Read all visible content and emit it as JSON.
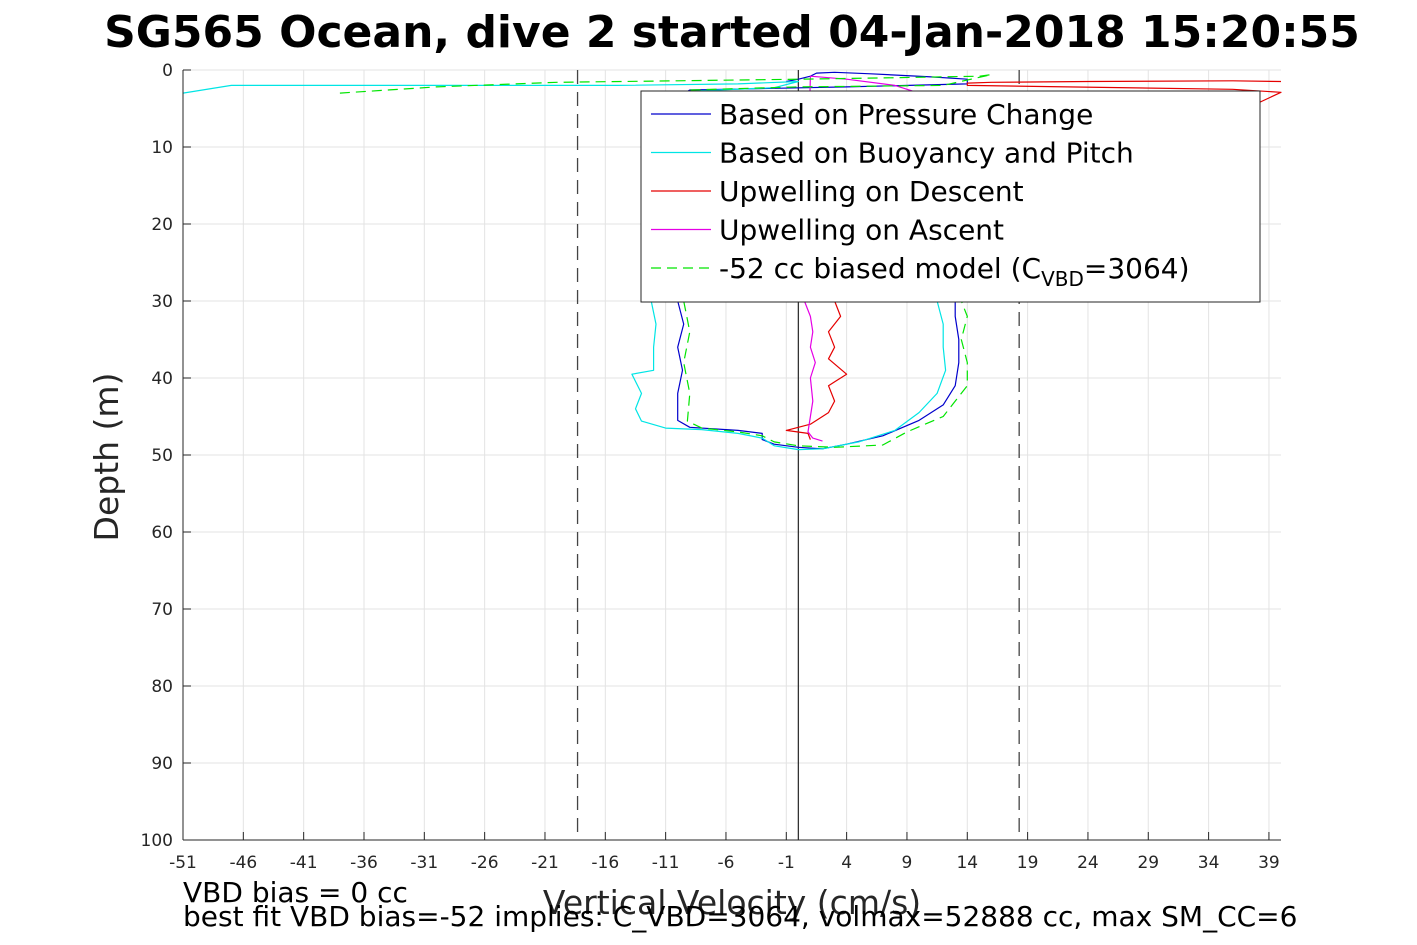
{
  "chart_data": {
    "type": "line",
    "title": "SG565 Ocean, dive 2 started 04-Jan-2018 15:20:55",
    "xlabel": "Vertical Velocity (cm/s)",
    "ylabel": "Depth (m)",
    "xlim": [
      -51,
      40
    ],
    "ylim": [
      0,
      100
    ],
    "y_reversed": true,
    "grid": true,
    "xticks": [
      -51,
      -46,
      -41,
      -36,
      -31,
      -26,
      -21,
      -16,
      -11,
      -6,
      -1,
      4,
      9,
      14,
      19,
      24,
      29,
      34,
      39
    ],
    "yticks": [
      0,
      10,
      20,
      30,
      40,
      50,
      60,
      70,
      80,
      90,
      100
    ],
    "legend_placement": "top-right",
    "reference_lines": {
      "zero_x": 0,
      "dashed_x": [
        -18.3,
        18.3
      ]
    },
    "series": [
      {
        "name": "Based on Pressure Change",
        "color": "#0000cc",
        "style": "solid",
        "points": [
          [
            -1,
            1.5
          ],
          [
            0,
            1.2
          ],
          [
            1,
            0.8
          ],
          [
            1.5,
            0.4
          ],
          [
            3,
            0.3
          ],
          [
            6,
            0.5
          ],
          [
            11,
            0.9
          ],
          [
            14,
            1.2
          ],
          [
            14,
            1.8
          ],
          [
            4,
            2.2
          ],
          [
            -9,
            2.6
          ],
          [
            -10,
            3.5
          ],
          [
            -10,
            6
          ],
          [
            -10,
            12
          ],
          [
            -10,
            18
          ],
          [
            -9.8,
            24
          ],
          [
            -10,
            30
          ],
          [
            -9.5,
            33
          ],
          [
            -10,
            36
          ],
          [
            -9.6,
            39
          ],
          [
            -10,
            42
          ],
          [
            -10,
            45.5
          ],
          [
            -9,
            46.4
          ],
          [
            -5,
            46.8
          ],
          [
            -3,
            47.2
          ],
          [
            -3,
            48
          ],
          [
            -2,
            48.6
          ],
          [
            0,
            49
          ],
          [
            2,
            49.2
          ],
          [
            4,
            48.6
          ],
          [
            7,
            47.5
          ],
          [
            10,
            45.5
          ],
          [
            12,
            43.5
          ],
          [
            13,
            41
          ],
          [
            13.3,
            38
          ],
          [
            13.3,
            35
          ],
          [
            13,
            32
          ],
          [
            13,
            30
          ]
        ]
      },
      {
        "name": "Based on Buoyancy and Pitch",
        "color": "#00e5e5",
        "style": "solid",
        "points": [
          [
            -51,
            3
          ],
          [
            -47,
            2
          ],
          [
            -40,
            2
          ],
          [
            -28,
            2
          ],
          [
            -15,
            2
          ],
          [
            -5,
            1.8
          ],
          [
            0,
            1.5
          ],
          [
            -2,
            2.3
          ],
          [
            -10,
            2.8
          ],
          [
            -11,
            4
          ],
          [
            -12.5,
            8
          ],
          [
            -12.5,
            16
          ],
          [
            -12.8,
            20
          ],
          [
            -13,
            23
          ],
          [
            -12.2,
            26
          ],
          [
            -12.2,
            30
          ],
          [
            -11.8,
            33
          ],
          [
            -12,
            36
          ],
          [
            -12,
            39
          ],
          [
            -13.8,
            39.5
          ],
          [
            -13,
            42
          ],
          [
            -13.5,
            44
          ],
          [
            -13,
            45.6
          ],
          [
            -11,
            46.5
          ],
          [
            -8,
            46.7
          ],
          [
            -5,
            47.2
          ],
          [
            -3,
            47.8
          ],
          [
            -2,
            48.8
          ],
          [
            0,
            49.3
          ],
          [
            2,
            49.2
          ],
          [
            5,
            48.3
          ],
          [
            8,
            46.8
          ],
          [
            10,
            44.5
          ],
          [
            11.5,
            42
          ],
          [
            12.2,
            39
          ],
          [
            12,
            36
          ],
          [
            12,
            33
          ],
          [
            11.5,
            30
          ]
        ]
      },
      {
        "name": "Upwelling on Descent",
        "color": "#e50000",
        "style": "solid",
        "points": [
          [
            40,
            1.5
          ],
          [
            36,
            1.4
          ],
          [
            24,
            1.5
          ],
          [
            16,
            1.6
          ],
          [
            14,
            1.7
          ],
          [
            14,
            2
          ],
          [
            36,
            2.5
          ],
          [
            40,
            2.9
          ],
          [
            3,
            30
          ],
          [
            3.5,
            32
          ],
          [
            2.5,
            34
          ],
          [
            3,
            36
          ],
          [
            2.5,
            37.5
          ],
          [
            4,
            39.5
          ],
          [
            2.5,
            41
          ],
          [
            3,
            43
          ],
          [
            2.5,
            44.5
          ],
          [
            1,
            46
          ],
          [
            -1,
            46.8
          ],
          [
            0.8,
            47.2
          ],
          [
            1,
            48
          ]
        ]
      },
      {
        "name": "Upwelling on Ascent",
        "color": "#e500e5",
        "style": "solid",
        "points": [
          [
            12,
            4
          ],
          [
            8,
            2
          ],
          [
            4,
            1.2
          ],
          [
            1,
            0.8
          ],
          [
            0.5,
            30
          ],
          [
            1,
            32
          ],
          [
            1.2,
            34
          ],
          [
            1,
            36
          ],
          [
            1.4,
            38
          ],
          [
            1,
            40
          ],
          [
            1.2,
            43
          ],
          [
            1,
            45
          ],
          [
            0.8,
            47
          ],
          [
            1.2,
            47.8
          ],
          [
            2,
            48.2
          ]
        ]
      },
      {
        "name": "-52 cc biased model (C_VBD=3064)",
        "color": "#00e500",
        "style": "dashed",
        "points": [
          [
            -38,
            3
          ],
          [
            -30,
            2.2
          ],
          [
            -20,
            1.6
          ],
          [
            -10,
            1.4
          ],
          [
            0,
            1.2
          ],
          [
            8,
            1
          ],
          [
            15,
            0.8
          ],
          [
            16,
            0.6
          ],
          [
            12,
            2
          ],
          [
            0,
            2.2
          ],
          [
            -9,
            2.6
          ],
          [
            -9.5,
            4
          ],
          [
            -9.5,
            12
          ],
          [
            -9.4,
            20
          ],
          [
            -9.3,
            26
          ],
          [
            -9.5,
            30
          ],
          [
            -9,
            34
          ],
          [
            -9.5,
            38
          ],
          [
            -9,
            42
          ],
          [
            -9.2,
            45.6
          ],
          [
            -8,
            46.5
          ],
          [
            -5,
            47
          ],
          [
            -3,
            47.5
          ],
          [
            -2,
            48.3
          ],
          [
            0,
            48.8
          ],
          [
            3,
            49
          ],
          [
            7,
            48.7
          ],
          [
            9,
            47
          ],
          [
            12,
            45
          ],
          [
            13,
            43
          ],
          [
            14,
            41
          ],
          [
            14,
            38
          ],
          [
            13.5,
            35
          ],
          [
            14,
            32
          ],
          [
            13.5,
            30
          ]
        ]
      }
    ],
    "legend": [
      {
        "label": "Based on Pressure Change",
        "color": "#0000cc",
        "style": "solid"
      },
      {
        "label": "Based on Buoyancy and Pitch",
        "color": "#00e5e5",
        "style": "solid"
      },
      {
        "label": "Upwelling on Descent",
        "color": "#e50000",
        "style": "solid"
      },
      {
        "label": "Upwelling on Ascent",
        "color": "#e500e5",
        "style": "solid"
      },
      {
        "label_main": "-52 cc biased model (C",
        "label_sub": "VBD",
        "label_tail": "=3064)",
        "color": "#00e500",
        "style": "dashed"
      }
    ]
  },
  "footer": {
    "line1": "VBD bias = 0 cc",
    "line2": "best fit VBD bias=-52 implies: C_VBD=3064, volmax=52888 cc, max SM_CC=6"
  }
}
